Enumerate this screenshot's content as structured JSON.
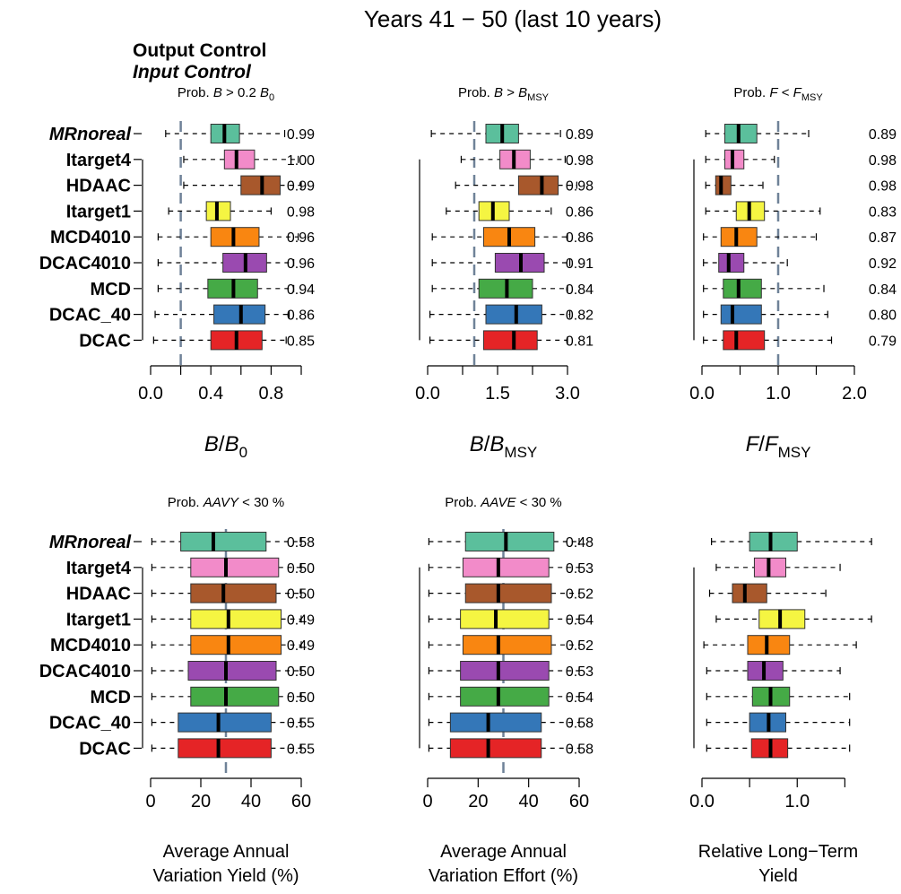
{
  "title": "Years 41 − 50 (last 10 years)",
  "legend": {
    "output_control": "Output Control",
    "input_control": "Input Control"
  },
  "method_labels": [
    "MRnoreal",
    "Itarget4",
    "HDAAC",
    "Itarget1",
    "MCD4010",
    "DCAC4010",
    "MCD",
    "DCAC_40",
    "DCAC"
  ],
  "colors": {
    "MRnoreal": "#5bbf9c",
    "Itarget4": "#f28bc9",
    "HDAAC": "#a8582c",
    "Itarget1": "#f5f542",
    "MCD4010": "#f98611",
    "DCAC4010": "#9a4ab0",
    "MCD": "#45aa46",
    "DCAC_40": "#3477b8",
    "DCAC": "#e52426",
    "axis": "#000000",
    "reference_line": "#6f8298"
  },
  "chart_data": [
    {
      "type": "boxplot",
      "title": "Prob. B > 0.2 B0",
      "title_parts": [
        [
          "Prob. ",
          "n"
        ],
        [
          "B",
          "i"
        ],
        [
          " > 0.2 ",
          "n"
        ],
        [
          "B",
          "i"
        ],
        [
          "0",
          "sub"
        ]
      ],
      "xlabel_parts": [
        [
          "B",
          "i"
        ],
        [
          "/",
          "n"
        ],
        [
          "B",
          "i"
        ],
        [
          "0",
          "sub"
        ]
      ],
      "xlim": [
        0,
        1.0
      ],
      "ticks": [
        0,
        0.2,
        0.4,
        0.6,
        0.8,
        1.0
      ],
      "tick_labels": [
        "0.0",
        "",
        "0.4",
        "",
        "0.8",
        ""
      ],
      "reference_line": 0.2,
      "probabilities": [
        "0.99",
        "1.00",
        "0.99",
        "0.98",
        "0.96",
        "0.96",
        "0.94",
        "0.86",
        "0.85"
      ],
      "boxes": [
        {
          "method": "MRnoreal",
          "whisker_low": 0.1,
          "q1": 0.4,
          "median": 0.49,
          "q3": 0.59,
          "whisker_high": 0.89
        },
        {
          "method": "Itarget4",
          "whisker_low": 0.22,
          "q1": 0.49,
          "median": 0.57,
          "q3": 0.69,
          "whisker_high": 0.98
        },
        {
          "method": "HDAAC",
          "whisker_low": 0.22,
          "q1": 0.6,
          "median": 0.74,
          "q3": 0.86,
          "whisker_high": 1.0
        },
        {
          "method": "Itarget1",
          "whisker_low": 0.12,
          "q1": 0.37,
          "median": 0.44,
          "q3": 0.53,
          "whisker_high": 0.8
        },
        {
          "method": "MCD4010",
          "whisker_low": 0.05,
          "q1": 0.4,
          "median": 0.55,
          "q3": 0.72,
          "whisker_high": 0.98
        },
        {
          "method": "DCAC4010",
          "whisker_low": 0.05,
          "q1": 0.48,
          "median": 0.63,
          "q3": 0.77,
          "whisker_high": 0.95
        },
        {
          "method": "MCD",
          "whisker_low": 0.05,
          "q1": 0.38,
          "median": 0.55,
          "q3": 0.71,
          "whisker_high": 0.95
        },
        {
          "method": "DCAC_40",
          "whisker_low": 0.03,
          "q1": 0.42,
          "median": 0.6,
          "q3": 0.76,
          "whisker_high": 0.92
        },
        {
          "method": "DCAC",
          "whisker_low": 0.02,
          "q1": 0.4,
          "median": 0.57,
          "q3": 0.74,
          "whisker_high": 0.9
        }
      ]
    },
    {
      "type": "boxplot",
      "title": "Prob. B > BMSY",
      "title_parts": [
        [
          "Prob. ",
          "n"
        ],
        [
          "B",
          "i"
        ],
        [
          " > ",
          "n"
        ],
        [
          "B",
          "i"
        ],
        [
          "MSY",
          "sub"
        ]
      ],
      "xlabel_parts": [
        [
          "B",
          "i"
        ],
        [
          "/",
          "n"
        ],
        [
          "B",
          "i"
        ],
        [
          "MSY",
          "sub"
        ]
      ],
      "xlim": [
        0,
        3.25
      ],
      "ticks": [
        0,
        0.75,
        1.5,
        2.25,
        3.0
      ],
      "tick_labels": [
        "0.0",
        "",
        "1.5",
        "",
        "3.0"
      ],
      "reference_line": 1.0,
      "probabilities": [
        "0.89",
        "0.98",
        "0.98",
        "0.86",
        "0.86",
        "0.91",
        "0.84",
        "0.82",
        "0.81"
      ],
      "boxes": [
        {
          "method": "MRnoreal",
          "whisker_low": 0.08,
          "q1": 1.25,
          "median": 1.6,
          "q3": 1.95,
          "whisker_high": 2.85
        },
        {
          "method": "Itarget4",
          "whisker_low": 0.72,
          "q1": 1.55,
          "median": 1.85,
          "q3": 2.2,
          "whisker_high": 2.95
        },
        {
          "method": "HDAAC",
          "whisker_low": 0.6,
          "q1": 1.95,
          "median": 2.45,
          "q3": 2.8,
          "whisker_high": 3.2
        },
        {
          "method": "Itarget1",
          "whisker_low": 0.4,
          "q1": 1.1,
          "median": 1.4,
          "q3": 1.75,
          "whisker_high": 2.65
        },
        {
          "method": "MCD4010",
          "whisker_low": 0.1,
          "q1": 1.2,
          "median": 1.75,
          "q3": 2.3,
          "whisker_high": 3.0
        },
        {
          "method": "DCAC4010",
          "whisker_low": 0.1,
          "q1": 1.45,
          "median": 2.0,
          "q3": 2.5,
          "whisker_high": 3.05
        },
        {
          "method": "MCD",
          "whisker_low": 0.1,
          "q1": 1.1,
          "median": 1.7,
          "q3": 2.25,
          "whisker_high": 3.0
        },
        {
          "method": "DCAC_40",
          "whisker_low": 0.05,
          "q1": 1.25,
          "median": 1.9,
          "q3": 2.45,
          "whisker_high": 3.05
        },
        {
          "method": "DCAC",
          "whisker_low": 0.05,
          "q1": 1.2,
          "median": 1.85,
          "q3": 2.35,
          "whisker_high": 3.0
        }
      ]
    },
    {
      "type": "boxplot",
      "title": "Prob. F < FMSY",
      "title_parts": [
        [
          "Prob. ",
          "n"
        ],
        [
          "F",
          "i"
        ],
        [
          " < ",
          "n"
        ],
        [
          "F",
          "i"
        ],
        [
          "MSY",
          "sub"
        ]
      ],
      "xlabel_parts": [
        [
          "F",
          "i"
        ],
        [
          "/",
          "n"
        ],
        [
          "F",
          "i"
        ],
        [
          "MSY",
          "sub"
        ]
      ],
      "xlim": [
        0,
        2.0
      ],
      "ticks": [
        0,
        0.5,
        1.0,
        1.5,
        2.0
      ],
      "tick_labels": [
        "0.0",
        "",
        "1.0",
        "",
        "2.0"
      ],
      "reference_line": 1.0,
      "probabilities": [
        "0.89",
        "0.98",
        "0.98",
        "0.83",
        "0.87",
        "0.92",
        "0.84",
        "0.80",
        "0.79"
      ],
      "boxes": [
        {
          "method": "MRnoreal",
          "whisker_low": 0.05,
          "q1": 0.3,
          "median": 0.48,
          "q3": 0.72,
          "whisker_high": 1.4
        },
        {
          "method": "Itarget4",
          "whisker_low": 0.05,
          "q1": 0.3,
          "median": 0.4,
          "q3": 0.55,
          "whisker_high": 0.95
        },
        {
          "method": "HDAAC",
          "whisker_low": 0.05,
          "q1": 0.18,
          "median": 0.25,
          "q3": 0.38,
          "whisker_high": 0.8
        },
        {
          "method": "Itarget1",
          "whisker_low": 0.05,
          "q1": 0.45,
          "median": 0.62,
          "q3": 0.82,
          "whisker_high": 1.55
        },
        {
          "method": "MCD4010",
          "whisker_low": 0.02,
          "q1": 0.25,
          "median": 0.45,
          "q3": 0.72,
          "whisker_high": 1.5
        },
        {
          "method": "DCAC4010",
          "whisker_low": 0.02,
          "q1": 0.22,
          "median": 0.35,
          "q3": 0.55,
          "whisker_high": 1.12
        },
        {
          "method": "MCD",
          "whisker_low": 0.02,
          "q1": 0.28,
          "median": 0.48,
          "q3": 0.78,
          "whisker_high": 1.6
        },
        {
          "method": "DCAC_40",
          "whisker_low": 0.02,
          "q1": 0.25,
          "median": 0.4,
          "q3": 0.78,
          "whisker_high": 1.65
        },
        {
          "method": "DCAC",
          "whisker_low": 0.02,
          "q1": 0.28,
          "median": 0.45,
          "q3": 0.82,
          "whisker_high": 1.7
        }
      ]
    },
    {
      "type": "boxplot",
      "title": "Prob. AAVY < 30 %",
      "title_parts": [
        [
          "Prob. ",
          "n"
        ],
        [
          "AAVY",
          "i"
        ],
        [
          " < 30 %",
          "n"
        ]
      ],
      "xlabel": "Average Annual Variation Yield (%)",
      "xlabel_lines": [
        "Average Annual",
        "Variation Yield (%)"
      ],
      "xlim": [
        0,
        60
      ],
      "ticks": [
        0,
        20,
        40,
        60
      ],
      "tick_labels": [
        "0",
        "20",
        "40",
        "60"
      ],
      "reference_line": 30,
      "probabilities": [
        "0.58",
        "0.50",
        "0.50",
        "0.49",
        "0.49",
        "0.50",
        "0.50",
        "0.55",
        "0.55"
      ],
      "boxes": [
        {
          "method": "MRnoreal",
          "whisker_low": 0.5,
          "q1": 12,
          "median": 25,
          "q3": 46,
          "whisker_high": 60
        },
        {
          "method": "Itarget4",
          "whisker_low": 0.5,
          "q1": 16,
          "median": 30,
          "q3": 51,
          "whisker_high": 60
        },
        {
          "method": "HDAAC",
          "whisker_low": 0.5,
          "q1": 16,
          "median": 29,
          "q3": 50,
          "whisker_high": 60
        },
        {
          "method": "Itarget1",
          "whisker_low": 0.5,
          "q1": 16,
          "median": 31,
          "q3": 52,
          "whisker_high": 60
        },
        {
          "method": "MCD4010",
          "whisker_low": 0.5,
          "q1": 16,
          "median": 31,
          "q3": 52,
          "whisker_high": 60
        },
        {
          "method": "DCAC4010",
          "whisker_low": 0.5,
          "q1": 15,
          "median": 30,
          "q3": 50,
          "whisker_high": 60
        },
        {
          "method": "MCD",
          "whisker_low": 0.5,
          "q1": 16,
          "median": 30,
          "q3": 51,
          "whisker_high": 60
        },
        {
          "method": "DCAC_40",
          "whisker_low": 0.5,
          "q1": 11,
          "median": 27,
          "q3": 48,
          "whisker_high": 60
        },
        {
          "method": "DCAC",
          "whisker_low": 0.5,
          "q1": 11,
          "median": 27,
          "q3": 48,
          "whisker_high": 60
        }
      ]
    },
    {
      "type": "boxplot",
      "title": "Prob. AAVE < 30 %",
      "title_parts": [
        [
          "Prob. ",
          "n"
        ],
        [
          "AAVE",
          "i"
        ],
        [
          " < 30 %",
          "n"
        ]
      ],
      "xlabel": "Average Annual Variation Effort (%)",
      "xlabel_lines": [
        "Average Annual",
        "Variation Effort (%)"
      ],
      "xlim": [
        0,
        60
      ],
      "ticks": [
        0,
        20,
        40,
        60
      ],
      "tick_labels": [
        "0",
        "20",
        "40",
        "60"
      ],
      "reference_line": 30,
      "probabilities": [
        "0.48",
        "0.53",
        "0.52",
        "0.54",
        "0.52",
        "0.53",
        "0.54",
        "0.58",
        "0.58"
      ],
      "boxes": [
        {
          "method": "MRnoreal",
          "whisker_low": 0.5,
          "q1": 15,
          "median": 31,
          "q3": 50,
          "whisker_high": 60
        },
        {
          "method": "Itarget4",
          "whisker_low": 0.5,
          "q1": 14,
          "median": 28,
          "q3": 48,
          "whisker_high": 60
        },
        {
          "method": "HDAAC",
          "whisker_low": 0.5,
          "q1": 15,
          "median": 28,
          "q3": 49,
          "whisker_high": 60
        },
        {
          "method": "Itarget1",
          "whisker_low": 0.5,
          "q1": 13,
          "median": 27,
          "q3": 48,
          "whisker_high": 60
        },
        {
          "method": "MCD4010",
          "whisker_low": 0.5,
          "q1": 14,
          "median": 28,
          "q3": 49,
          "whisker_high": 60
        },
        {
          "method": "DCAC4010",
          "whisker_low": 0.5,
          "q1": 13,
          "median": 28,
          "q3": 48,
          "whisker_high": 60
        },
        {
          "method": "MCD",
          "whisker_low": 0.5,
          "q1": 13,
          "median": 28,
          "q3": 48,
          "whisker_high": 60
        },
        {
          "method": "DCAC_40",
          "whisker_low": 0.5,
          "q1": 9,
          "median": 24,
          "q3": 45,
          "whisker_high": 60
        },
        {
          "method": "DCAC",
          "whisker_low": 0.5,
          "q1": 9,
          "median": 24,
          "q3": 45,
          "whisker_high": 60
        }
      ]
    },
    {
      "type": "boxplot",
      "title": "",
      "title_parts": [],
      "xlabel": "Relative Long−Term Yield",
      "xlabel_lines": [
        "Relative Long−Term",
        "Yield"
      ],
      "xlim": [
        0,
        1.6
      ],
      "ticks": [
        0,
        0.5,
        1.0,
        1.5
      ],
      "tick_labels": [
        "0.0",
        "",
        "1.0",
        ""
      ],
      "reference_line": null,
      "probabilities": [],
      "boxes": [
        {
          "method": "MRnoreal",
          "whisker_low": 0.1,
          "q1": 0.5,
          "median": 0.72,
          "q3": 1.0,
          "whisker_high": 1.78
        },
        {
          "method": "Itarget4",
          "whisker_low": 0.15,
          "q1": 0.55,
          "median": 0.7,
          "q3": 0.88,
          "whisker_high": 1.45
        },
        {
          "method": "HDAAC",
          "whisker_low": 0.08,
          "q1": 0.32,
          "median": 0.45,
          "q3": 0.68,
          "whisker_high": 1.3
        },
        {
          "method": "Itarget1",
          "whisker_low": 0.15,
          "q1": 0.6,
          "median": 0.82,
          "q3": 1.08,
          "whisker_high": 1.78
        },
        {
          "method": "MCD4010",
          "whisker_low": 0.02,
          "q1": 0.48,
          "median": 0.68,
          "q3": 0.92,
          "whisker_high": 1.62
        },
        {
          "method": "DCAC4010",
          "whisker_low": 0.05,
          "q1": 0.48,
          "median": 0.65,
          "q3": 0.85,
          "whisker_high": 1.45
        },
        {
          "method": "MCD",
          "whisker_low": 0.05,
          "q1": 0.53,
          "median": 0.72,
          "q3": 0.92,
          "whisker_high": 1.55
        },
        {
          "method": "DCAC_40",
          "whisker_low": 0.05,
          "q1": 0.5,
          "median": 0.7,
          "q3": 0.88,
          "whisker_high": 1.55
        },
        {
          "method": "DCAC",
          "whisker_low": 0.05,
          "q1": 0.52,
          "median": 0.72,
          "q3": 0.9,
          "whisker_high": 1.55
        }
      ]
    }
  ]
}
